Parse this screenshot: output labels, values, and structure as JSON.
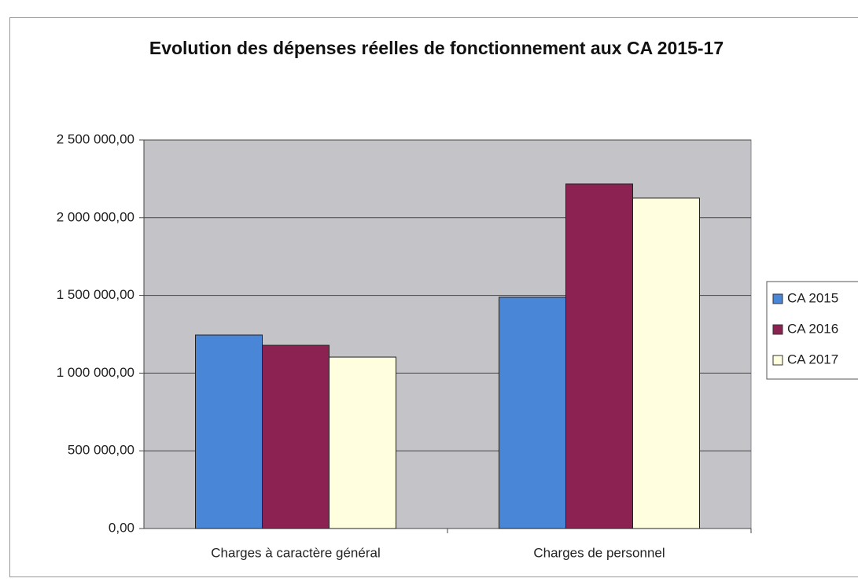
{
  "chart_data": {
    "type": "bar",
    "title": "Evolution des dépenses réelles de fonctionnement aux CA 2015-17",
    "categories": [
      "Charges à caractère général",
      "Charges de personnel"
    ],
    "series": [
      {
        "name": "CA 2015",
        "color": "#4a86d8",
        "values": [
          1245000,
          1488000
        ]
      },
      {
        "name": "CA 2016",
        "color": "#8b2252",
        "values": [
          1179000,
          2217000
        ]
      },
      {
        "name": "CA 2017",
        "color": "#ffffe0",
        "values": [
          1103000,
          2126000
        ]
      }
    ],
    "ylim": [
      0,
      2500000
    ],
    "yticks": [
      {
        "value": 0,
        "label": "0,00"
      },
      {
        "value": 500000,
        "label": "500 000,00"
      },
      {
        "value": 1000000,
        "label": "1 000 000,00"
      },
      {
        "value": 1500000,
        "label": "1 500 000,00"
      },
      {
        "value": 2000000,
        "label": "2 000 000,00"
      },
      {
        "value": 2500000,
        "label": "2 500 000,00"
      }
    ],
    "grid": true,
    "legend": "right"
  }
}
